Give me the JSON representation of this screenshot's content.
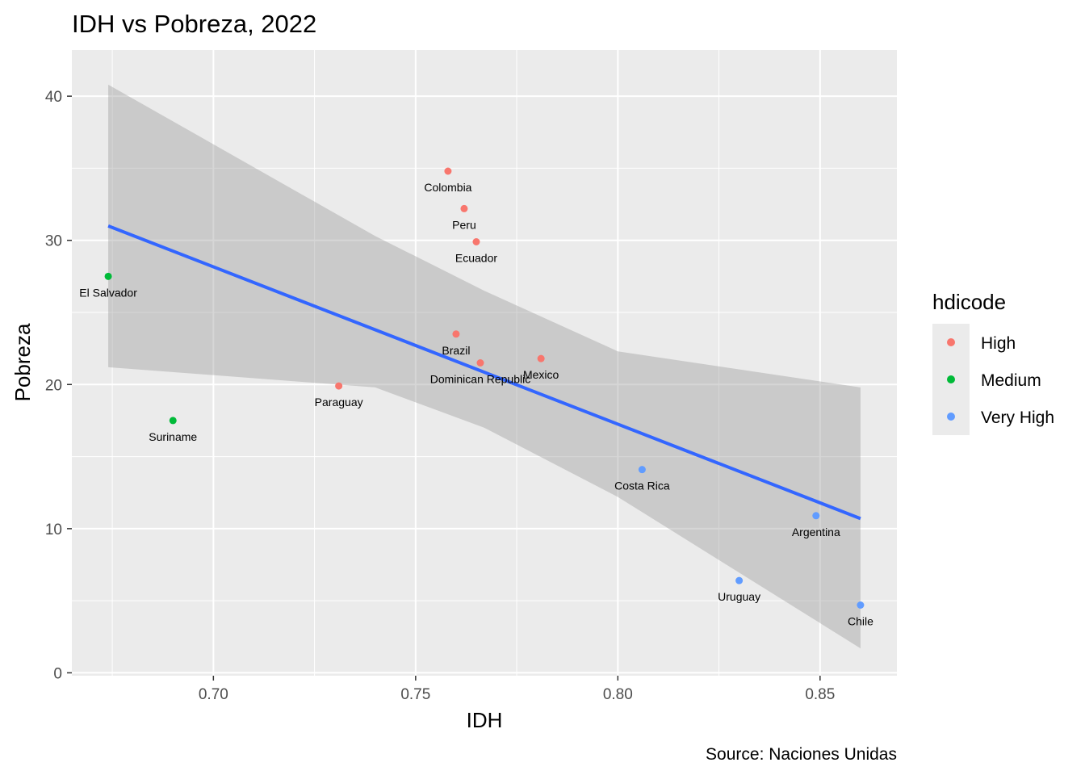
{
  "chart_data": {
    "type": "scatter",
    "title": "IDH vs Pobreza, 2022",
    "xlabel": "IDH",
    "ylabel": "Pobreza",
    "caption": "Source: Naciones Unidas",
    "xlim": [
      0.665,
      0.869
    ],
    "ylim": [
      -0.2,
      43.2
    ],
    "x_ticks": [
      0.7,
      0.75,
      0.8,
      0.85
    ],
    "x_tick_labels": [
      "0.70",
      "0.75",
      "0.80",
      "0.85"
    ],
    "y_ticks": [
      0,
      10,
      20,
      30,
      40
    ],
    "y_tick_labels": [
      "0",
      "10",
      "20",
      "30",
      "40"
    ],
    "grid": true,
    "legend": {
      "title": "hdicode",
      "position": "right",
      "entries": [
        {
          "name": "High",
          "color": "#F8766D"
        },
        {
          "name": "Medium",
          "color": "#00BA38"
        },
        {
          "name": "Very High",
          "color": "#619CFF"
        }
      ]
    },
    "points": [
      {
        "label": "Colombia",
        "x": 0.758,
        "y": 34.8,
        "hdicode": "High"
      },
      {
        "label": "Peru",
        "x": 0.762,
        "y": 32.2,
        "hdicode": "High"
      },
      {
        "label": "Ecuador",
        "x": 0.765,
        "y": 29.9,
        "hdicode": "High"
      },
      {
        "label": "El Salvador",
        "x": 0.674,
        "y": 27.5,
        "hdicode": "Medium"
      },
      {
        "label": "Brazil",
        "x": 0.76,
        "y": 23.5,
        "hdicode": "High"
      },
      {
        "label": "Dominican Republic",
        "x": 0.766,
        "y": 21.5,
        "hdicode": "High"
      },
      {
        "label": "Mexico",
        "x": 0.781,
        "y": 21.8,
        "hdicode": "High"
      },
      {
        "label": "Paraguay",
        "x": 0.731,
        "y": 19.9,
        "hdicode": "High"
      },
      {
        "label": "Suriname",
        "x": 0.69,
        "y": 17.5,
        "hdicode": "Medium"
      },
      {
        "label": "Costa Rica",
        "x": 0.806,
        "y": 14.1,
        "hdicode": "Very High"
      },
      {
        "label": "Argentina",
        "x": 0.849,
        "y": 10.9,
        "hdicode": "Very High"
      },
      {
        "label": "Uruguay",
        "x": 0.83,
        "y": 6.4,
        "hdicode": "Very High"
      },
      {
        "label": "Chile",
        "x": 0.86,
        "y": 4.7,
        "hdicode": "Very High"
      }
    ],
    "regression": {
      "method": "lm",
      "color": "#3366FF",
      "band_color": "#999999",
      "x_range": [
        0.674,
        0.86
      ],
      "fit": [
        [
          0.674,
          31.0
        ],
        [
          0.86,
          10.7
        ]
      ],
      "band": [
        [
          0.674,
          21.2,
          40.8
        ],
        [
          0.74,
          19.8,
          30.3
        ],
        [
          0.767,
          17.0,
          26.5
        ],
        [
          0.8,
          12.2,
          22.3
        ],
        [
          0.86,
          1.7,
          19.8
        ]
      ]
    }
  }
}
